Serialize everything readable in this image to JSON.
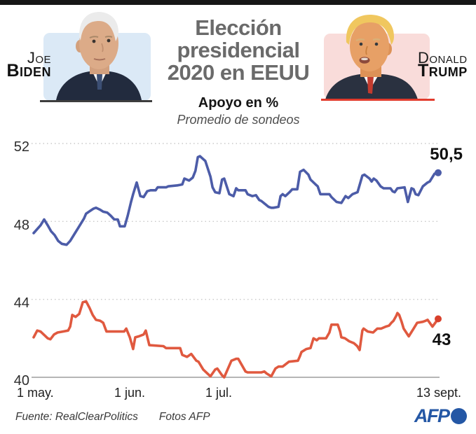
{
  "header": {
    "title_lines": [
      "Elección",
      "presidencial",
      "2020 en EEUU"
    ],
    "subtitle": "Apoyo en %",
    "subtitle2": "Promedio de sondeos",
    "left_candidate": {
      "first_name": "Joe",
      "last_name": "Biden"
    },
    "right_candidate": {
      "first_name": "Donald",
      "last_name": "Trump"
    }
  },
  "colors": {
    "biden_line": "#4c5ca8",
    "trump_line": "#e0593f",
    "trump_dot": "#d8402c",
    "biden_photo_bg": "#dbe9f6",
    "trump_photo_bg": "#f9dcda",
    "afp_blue": "#2457a5",
    "grid": "#c9c9c9",
    "axis": "#8a8a8a"
  },
  "chart_data": {
    "type": "line",
    "title": "Apoyo en %",
    "subtitle": "Promedio de sondeos",
    "grid": "horizontal-dotted",
    "legend": "none",
    "x_axis": {
      "unit": "days since 1 May 2020",
      "range": [
        0,
        135
      ],
      "tick_labels": [
        "1 may.",
        "1 jun.",
        "1 jul.",
        "13 sept."
      ],
      "tick_days": [
        0,
        31,
        61,
        135
      ]
    },
    "y_axis": {
      "range": [
        40,
        52
      ],
      "ticks": [
        52,
        48,
        44,
        40
      ]
    },
    "series": [
      {
        "name": "Biden",
        "color": "#4c5ca8",
        "dot_color": "#4c5ca8",
        "end_label": "50,5",
        "end_value": 50.5,
        "points": [
          [
            0,
            47.4
          ],
          [
            2.3,
            47.8
          ],
          [
            3.5,
            48.1
          ],
          [
            4.7,
            47.8
          ],
          [
            5.8,
            47.5
          ],
          [
            7,
            47.3
          ],
          [
            8.2,
            47
          ],
          [
            9.4,
            46.85
          ],
          [
            11,
            46.8
          ],
          [
            12.2,
            47
          ],
          [
            13.8,
            47.4
          ],
          [
            15.2,
            47.75
          ],
          [
            16.8,
            48.15
          ],
          [
            17.5,
            48.4
          ],
          [
            19.9,
            48.65
          ],
          [
            20.8,
            48.7
          ],
          [
            22.2,
            48.6
          ],
          [
            23.2,
            48.5
          ],
          [
            24.6,
            48.45
          ],
          [
            25.7,
            48.3
          ],
          [
            26.9,
            48.1
          ],
          [
            28.1,
            48.1
          ],
          [
            28.8,
            47.75
          ],
          [
            30.4,
            47.75
          ],
          [
            31.4,
            48.3
          ],
          [
            32.5,
            49
          ],
          [
            33.2,
            49.4
          ],
          [
            34.4,
            50
          ],
          [
            35.6,
            49.3
          ],
          [
            36.7,
            49.25
          ],
          [
            37.9,
            49.55
          ],
          [
            39,
            49.6
          ],
          [
            40.7,
            49.6
          ],
          [
            41.4,
            49.75
          ],
          [
            44.2,
            49.75
          ],
          [
            44.9,
            49.8
          ],
          [
            48,
            49.85
          ],
          [
            49.6,
            49.9
          ],
          [
            50.3,
            50.2
          ],
          [
            51.9,
            50.1
          ],
          [
            53.1,
            50.25
          ],
          [
            54,
            50.6
          ],
          [
            54.8,
            51.3
          ],
          [
            55.5,
            51.35
          ],
          [
            56.6,
            51.2
          ],
          [
            57.3,
            51.1
          ],
          [
            59,
            50.3
          ],
          [
            59.7,
            49.75
          ],
          [
            60.6,
            49.5
          ],
          [
            62,
            49.45
          ],
          [
            62.9,
            50.15
          ],
          [
            63.6,
            50.2
          ],
          [
            65.3,
            49.4
          ],
          [
            66.7,
            49.3
          ],
          [
            67.6,
            49.7
          ],
          [
            68.3,
            49.6
          ],
          [
            70.7,
            49.6
          ],
          [
            71.4,
            49.4
          ],
          [
            73,
            49.3
          ],
          [
            74.2,
            49.35
          ],
          [
            75.3,
            49.1
          ],
          [
            76,
            49.05
          ],
          [
            78.4,
            48.75
          ],
          [
            79.3,
            48.7
          ],
          [
            80,
            48.7
          ],
          [
            81.7,
            48.75
          ],
          [
            82.4,
            49.3
          ],
          [
            83.1,
            49.4
          ],
          [
            84,
            49.3
          ],
          [
            85.4,
            49.5
          ],
          [
            86.3,
            49.65
          ],
          [
            88,
            49.65
          ],
          [
            88.9,
            50.55
          ],
          [
            90.1,
            50.65
          ],
          [
            91.7,
            50.4
          ],
          [
            92.4,
            50.15
          ],
          [
            94.1,
            49.9
          ],
          [
            94.8,
            49.8
          ],
          [
            95.7,
            49.4
          ],
          [
            98.7,
            49.4
          ],
          [
            99.4,
            49.25
          ],
          [
            101.1,
            49
          ],
          [
            102.7,
            48.95
          ],
          [
            104.1,
            49.3
          ],
          [
            105,
            49.2
          ],
          [
            106.4,
            49.4
          ],
          [
            108.1,
            49.5
          ],
          [
            109.7,
            50.35
          ],
          [
            110.4,
            50.4
          ],
          [
            112.1,
            50.2
          ],
          [
            112.8,
            50.05
          ],
          [
            113.5,
            50.2
          ],
          [
            114.4,
            50.1
          ],
          [
            115.8,
            49.8
          ],
          [
            116.8,
            49.7
          ],
          [
            119.1,
            49.7
          ],
          [
            119.8,
            49.55
          ],
          [
            120.5,
            49.5
          ],
          [
            121.4,
            49.7
          ],
          [
            123.8,
            49.75
          ],
          [
            124.9,
            49
          ],
          [
            126.1,
            49.7
          ],
          [
            126.8,
            49.65
          ],
          [
            127.5,
            49.4
          ],
          [
            128.4,
            49.35
          ],
          [
            129.9,
            49.8
          ],
          [
            131.5,
            50
          ],
          [
            132.2,
            50.05
          ],
          [
            133.8,
            50.45
          ],
          [
            135,
            50.5
          ]
        ]
      },
      {
        "name": "Trump",
        "color": "#e0593f",
        "dot_color": "#d8402c",
        "end_label": "43",
        "end_value": 43,
        "points": [
          [
            0,
            42.05
          ],
          [
            1.2,
            42.4
          ],
          [
            2.3,
            42.35
          ],
          [
            4.7,
            42
          ],
          [
            5.6,
            41.95
          ],
          [
            6.8,
            42.2
          ],
          [
            8,
            42.3
          ],
          [
            9.8,
            42.35
          ],
          [
            11.5,
            42.4
          ],
          [
            12.2,
            42.6
          ],
          [
            12.9,
            43.2
          ],
          [
            14,
            43.1
          ],
          [
            15.2,
            43.25
          ],
          [
            16.4,
            43.85
          ],
          [
            17.5,
            43.9
          ],
          [
            18.7,
            43.55
          ],
          [
            19.7,
            43.2
          ],
          [
            20.8,
            42.95
          ],
          [
            22.2,
            42.9
          ],
          [
            23.2,
            42.8
          ],
          [
            24.3,
            42.35
          ],
          [
            30.2,
            42.35
          ],
          [
            30.9,
            42.5
          ],
          [
            32.1,
            42.05
          ],
          [
            33.2,
            41.45
          ],
          [
            33.9,
            42.05
          ],
          [
            35.1,
            42.1
          ],
          [
            36.7,
            42.2
          ],
          [
            37.4,
            42.4
          ],
          [
            38.6,
            41.65
          ],
          [
            43.3,
            41.6
          ],
          [
            44.2,
            41.5
          ],
          [
            48.9,
            41.5
          ],
          [
            49.6,
            41.15
          ],
          [
            51.2,
            41.05
          ],
          [
            52.6,
            41.2
          ],
          [
            54.3,
            40.85
          ],
          [
            55,
            40.8
          ],
          [
            56.6,
            40.4
          ],
          [
            58.3,
            40.15
          ],
          [
            59,
            40.05
          ],
          [
            60.6,
            40.4
          ],
          [
            61.3,
            40.45
          ],
          [
            62.9,
            40.1
          ],
          [
            63.6,
            40
          ],
          [
            66,
            40.85
          ],
          [
            67.6,
            40.95
          ],
          [
            68.3,
            40.95
          ],
          [
            70.7,
            40.3
          ],
          [
            71.4,
            40.25
          ],
          [
            76,
            40.25
          ],
          [
            77,
            40.3
          ],
          [
            77.7,
            40.2
          ],
          [
            79.3,
            40.05
          ],
          [
            80.7,
            40.45
          ],
          [
            81.7,
            40.55
          ],
          [
            83.1,
            40.55
          ],
          [
            85.2,
            40.8
          ],
          [
            88.2,
            40.85
          ],
          [
            88.9,
            41.1
          ],
          [
            89.4,
            41.3
          ],
          [
            91,
            41.45
          ],
          [
            92.4,
            41.5
          ],
          [
            93.4,
            42
          ],
          [
            94.5,
            41.9
          ],
          [
            95.2,
            42
          ],
          [
            97.6,
            42
          ],
          [
            98.7,
            42.3
          ],
          [
            99.4,
            42.7
          ],
          [
            101.5,
            42.7
          ],
          [
            102.3,
            42.35
          ],
          [
            102.7,
            42.05
          ],
          [
            103.9,
            42
          ],
          [
            105.3,
            41.85
          ],
          [
            106.9,
            41.75
          ],
          [
            108,
            41.6
          ],
          [
            108.8,
            41.4
          ],
          [
            109.7,
            42.4
          ],
          [
            110.1,
            42.5
          ],
          [
            111.5,
            42.35
          ],
          [
            113.3,
            42.3
          ],
          [
            114,
            42.4
          ],
          [
            114.7,
            42.5
          ],
          [
            116,
            42.5
          ],
          [
            117.5,
            42.6
          ],
          [
            118.6,
            42.65
          ],
          [
            119.4,
            42.8
          ],
          [
            120.1,
            42.9
          ],
          [
            121,
            43.15
          ],
          [
            121.4,
            43.3
          ],
          [
            122,
            43.2
          ],
          [
            122.8,
            42.85
          ],
          [
            123.5,
            42.5
          ],
          [
            125.2,
            42.1
          ],
          [
            126.8,
            42.5
          ],
          [
            128,
            42.8
          ],
          [
            129.9,
            42.85
          ],
          [
            130.8,
            42.9
          ],
          [
            131.5,
            42.95
          ],
          [
            133.1,
            42.6
          ],
          [
            133.8,
            42.75
          ],
          [
            135,
            43
          ]
        ]
      }
    ]
  },
  "footer": {
    "source": "Fuente: RealClearPolitics",
    "credit": "Fotos AFP",
    "logo_text": "AFP"
  }
}
